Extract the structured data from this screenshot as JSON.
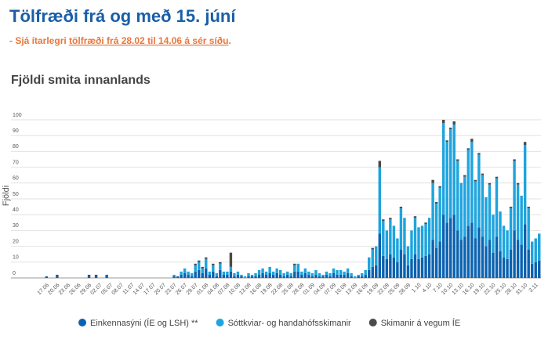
{
  "header": {
    "title": "Tölfræði frá og með 15. júní",
    "note_prefix": "- Sjá ítarlegri ",
    "note_link": "tölfræði frá 28.02 til 14.06 á sér síðu",
    "note_suffix": "."
  },
  "chart_data": {
    "type": "stacked_bar",
    "title": "Fjöldi smita innanlands",
    "y_label": "Fjöldi",
    "categories": [
      null,
      null,
      "17.06",
      null,
      null,
      "20.06",
      null,
      null,
      "23.06",
      null,
      null,
      "26.06",
      null,
      null,
      "29.06",
      null,
      null,
      "02.07",
      null,
      null,
      "05.07",
      null,
      null,
      "08.07",
      null,
      null,
      "11.07",
      null,
      null,
      "14.07",
      null,
      null,
      "17.07",
      null,
      null,
      "20.07",
      null,
      null,
      "23.07",
      null,
      null,
      "26.07",
      null,
      null,
      "29.07",
      null,
      null,
      "01.08",
      null,
      null,
      "04.08",
      null,
      null,
      "07.08",
      null,
      null,
      "10.08",
      null,
      null,
      "13.08",
      null,
      null,
      "16.08",
      null,
      null,
      "19.08",
      null,
      null,
      "22.08",
      null,
      null,
      "25.08",
      null,
      null,
      "28.08",
      null,
      null,
      "01.09",
      null,
      null,
      "04.09",
      null,
      null,
      "07.09",
      null,
      null,
      "10.09",
      null,
      null,
      "13.09",
      null,
      null,
      "16.09",
      null,
      null,
      "19.09",
      null,
      null,
      "22.09",
      null,
      null,
      "25.09",
      null,
      null,
      "28.09",
      null,
      null,
      "1.10",
      null,
      null,
      "4.10",
      null,
      null,
      "7.10",
      null,
      null,
      "10.10",
      null,
      null,
      "13.10",
      null,
      null,
      "16.10",
      null,
      null,
      "19.10",
      null,
      null,
      "22.10",
      null,
      null,
      "25.10",
      null,
      null,
      "28.10",
      null,
      null,
      "31.10",
      null,
      null,
      "3.11",
      null
    ],
    "series": [
      {
        "name": "Einkennasýni (ÍE og LSH) **",
        "color": "#0b62b0",
        "values": [
          0,
          0,
          1,
          0,
          0,
          1,
          0,
          0,
          0,
          0,
          0,
          0,
          0,
          0,
          1,
          0,
          1,
          0,
          0,
          2,
          0,
          0,
          0,
          0,
          0,
          0,
          0,
          0,
          0,
          0,
          0,
          0,
          0,
          0,
          0,
          0,
          0,
          0,
          1,
          1,
          2,
          3,
          2,
          1,
          4,
          5,
          3,
          6,
          2,
          4,
          1,
          5,
          2,
          2,
          4,
          1,
          2,
          1,
          0,
          1,
          1,
          1,
          2,
          3,
          2,
          3,
          2,
          3,
          2,
          1,
          2,
          1,
          4,
          4,
          2,
          3,
          2,
          1,
          2,
          1,
          1,
          2,
          1,
          3,
          2,
          2,
          2,
          3,
          1,
          0,
          1,
          1,
          2,
          5,
          7,
          8,
          28,
          14,
          12,
          15,
          13,
          10,
          18,
          15,
          8,
          12,
          15,
          12,
          13,
          14,
          15,
          24,
          19,
          23,
          40,
          35,
          38,
          40,
          30,
          24,
          26,
          33,
          35,
          25,
          32,
          26,
          20,
          24,
          16,
          26,
          17,
          13,
          12,
          18,
          30,
          24,
          21,
          34,
          18,
          9,
          10,
          11
        ]
      },
      {
        "name": "Sóttkviar- og handahófsskimanir",
        "color": "#1ea4de",
        "values": [
          0,
          0,
          0,
          0,
          0,
          0,
          0,
          0,
          0,
          0,
          0,
          0,
          0,
          0,
          0,
          0,
          0,
          0,
          0,
          0,
          0,
          0,
          0,
          0,
          0,
          0,
          0,
          0,
          0,
          0,
          0,
          0,
          0,
          0,
          0,
          0,
          0,
          0,
          1,
          0,
          2,
          3,
          2,
          2,
          4,
          5,
          3,
          6,
          2,
          4,
          2,
          4,
          2,
          2,
          3,
          2,
          2,
          1,
          1,
          2,
          1,
          2,
          3,
          3,
          2,
          4,
          2,
          3,
          3,
          2,
          2,
          2,
          4,
          5,
          2,
          3,
          2,
          2,
          3,
          2,
          1,
          2,
          2,
          3,
          3,
          3,
          2,
          3,
          2,
          1,
          1,
          2,
          3,
          8,
          11,
          12,
          42,
          22,
          18,
          22,
          20,
          15,
          26,
          23,
          12,
          18,
          23,
          20,
          20,
          20,
          23,
          36,
          28,
          34,
          58,
          51,
          56,
          57,
          44,
          36,
          38,
          48,
          51,
          36,
          46,
          39,
          31,
          35,
          24,
          37,
          25,
          20,
          18,
          26,
          44,
          35,
          31,
          50,
          26,
          14,
          15,
          17
        ]
      },
      {
        "name": "Skimanir á vegum ÍE",
        "color": "#4a4a4a",
        "values": [
          0,
          0,
          0,
          0,
          0,
          1,
          0,
          0,
          0,
          0,
          0,
          0,
          0,
          0,
          1,
          0,
          1,
          0,
          0,
          0,
          0,
          0,
          0,
          0,
          0,
          0,
          0,
          0,
          0,
          0,
          0,
          0,
          0,
          0,
          0,
          0,
          0,
          0,
          0,
          0,
          0,
          0,
          0,
          0,
          1,
          1,
          1,
          1,
          0,
          1,
          0,
          1,
          0,
          0,
          9,
          0,
          0,
          0,
          0,
          0,
          0,
          0,
          0,
          0,
          0,
          0,
          0,
          0,
          0,
          0,
          0,
          0,
          1,
          0,
          0,
          0,
          0,
          0,
          0,
          0,
          0,
          0,
          0,
          0,
          0,
          0,
          0,
          0,
          0,
          0,
          0,
          0,
          0,
          0,
          1,
          0,
          4,
          1,
          0,
          1,
          0,
          0,
          1,
          0,
          0,
          0,
          1,
          0,
          0,
          1,
          0,
          2,
          1,
          1,
          2,
          1,
          1,
          2,
          1,
          0,
          1,
          1,
          2,
          1,
          1,
          1,
          0,
          1,
          0,
          1,
          0,
          0,
          0,
          1,
          1,
          1,
          0,
          2,
          1,
          0,
          0,
          0
        ]
      }
    ],
    "ylim": [
      0,
      100
    ],
    "yticks": [
      0,
      10,
      20,
      30,
      40,
      50,
      60,
      70,
      80,
      90,
      100
    ],
    "grid": true,
    "legend": "bottom"
  }
}
